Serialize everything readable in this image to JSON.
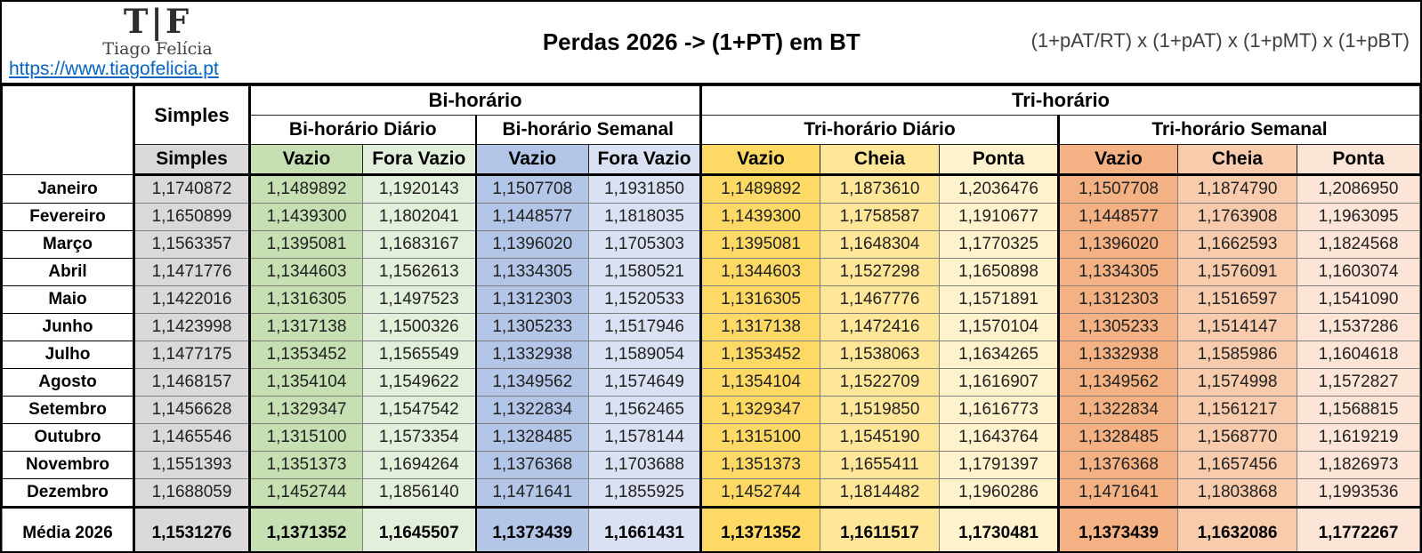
{
  "header": {
    "logo_tf": "T|F",
    "logo_name": "Tiago Felícia",
    "link": "https://www.tiagofelicia.pt",
    "title": "Perdas 2026 -> (1+PT) em BT",
    "formula": "(1+pAT/RT) x (1+pAT) x (1+pMT) x (1+pBT)"
  },
  "table_labels": {
    "group_bi": "Bi-horário",
    "group_tri": "Tri-horário",
    "simples_merged": "Simples",
    "sub_bi_diario": "Bi-horário Diário",
    "sub_bi_semanal": "Bi-horário Semanal",
    "sub_tri_diario": "Tri-horário Diário",
    "sub_tri_semanal": "Tri-horário Semanal",
    "col_headers": [
      "Simples",
      "Vazio",
      "Fora Vazio",
      "Vazio",
      "Fora Vazio",
      "Vazio",
      "Cheia",
      "Ponta",
      "Vazio",
      "Cheia",
      "Ponta"
    ]
  },
  "colors": {
    "simples": "#d9d9d9",
    "bi_diario_vazio": "#c6e0b4",
    "bi_diario_fora_vazio": "#e2efda",
    "bi_semanal_vazio": "#b4c6e7",
    "bi_semanal_fora_vazio": "#d9e1f2",
    "tri_diario_vazio": "#ffd966",
    "tri_diario_cheia": "#ffe699",
    "tri_diario_ponta": "#fff2cc",
    "tri_semanal_vazio": "#f4b183",
    "tri_semanal_cheia": "#f8cbad",
    "tri_semanal_ponta": "#fce4d6",
    "link_blue": "#0563c1"
  },
  "chart_data": {
    "type": "table",
    "title": "Perdas 2026 -> (1+PT) em BT",
    "formula": "(1+pAT/RT) x (1+pAT) x (1+pMT) x (1+pBT)",
    "columns": [
      "Simples",
      "Bi-horário Diário Vazio",
      "Bi-horário Diário Fora Vazio",
      "Bi-horário Semanal Vazio",
      "Bi-horário Semanal Fora Vazio",
      "Tri-horário Diário Vazio",
      "Tri-horário Diário Cheia",
      "Tri-horário Diário Ponta",
      "Tri-horário Semanal Vazio",
      "Tri-horário Semanal Cheia",
      "Tri-horário Semanal Ponta"
    ],
    "rows": [
      {
        "month": "Janeiro",
        "values": [
          "1,1740872",
          "1,1489892",
          "1,1920143",
          "1,1507708",
          "1,1931850",
          "1,1489892",
          "1,1873610",
          "1,2036476",
          "1,1507708",
          "1,1874790",
          "1,2086950"
        ]
      },
      {
        "month": "Fevereiro",
        "values": [
          "1,1650899",
          "1,1439300",
          "1,1802041",
          "1,1448577",
          "1,1818035",
          "1,1439300",
          "1,1758587",
          "1,1910677",
          "1,1448577",
          "1,1763908",
          "1,1963095"
        ]
      },
      {
        "month": "Março",
        "values": [
          "1,1563357",
          "1,1395081",
          "1,1683167",
          "1,1396020",
          "1,1705303",
          "1,1395081",
          "1,1648304",
          "1,1770325",
          "1,1396020",
          "1,1662593",
          "1,1824568"
        ]
      },
      {
        "month": "Abril",
        "values": [
          "1,1471776",
          "1,1344603",
          "1,1562613",
          "1,1334305",
          "1,1580521",
          "1,1344603",
          "1,1527298",
          "1,1650898",
          "1,1334305",
          "1,1576091",
          "1,1603074"
        ]
      },
      {
        "month": "Maio",
        "values": [
          "1,1422016",
          "1,1316305",
          "1,1497523",
          "1,1312303",
          "1,1520533",
          "1,1316305",
          "1,1467776",
          "1,1571891",
          "1,1312303",
          "1,1516597",
          "1,1541090"
        ]
      },
      {
        "month": "Junho",
        "values": [
          "1,1423998",
          "1,1317138",
          "1,1500326",
          "1,1305233",
          "1,1517946",
          "1,1317138",
          "1,1472416",
          "1,1570104",
          "1,1305233",
          "1,1514147",
          "1,1537286"
        ]
      },
      {
        "month": "Julho",
        "values": [
          "1,1477175",
          "1,1353452",
          "1,1565549",
          "1,1332938",
          "1,1589054",
          "1,1353452",
          "1,1538063",
          "1,1634265",
          "1,1332938",
          "1,1585986",
          "1,1604618"
        ]
      },
      {
        "month": "Agosto",
        "values": [
          "1,1468157",
          "1,1354104",
          "1,1549622",
          "1,1349562",
          "1,1574649",
          "1,1354104",
          "1,1522709",
          "1,1616907",
          "1,1349562",
          "1,1574998",
          "1,1572827"
        ]
      },
      {
        "month": "Setembro",
        "values": [
          "1,1456628",
          "1,1329347",
          "1,1547542",
          "1,1322834",
          "1,1562465",
          "1,1329347",
          "1,1519850",
          "1,1616773",
          "1,1322834",
          "1,1561217",
          "1,1568815"
        ]
      },
      {
        "month": "Outubro",
        "values": [
          "1,1465546",
          "1,1315100",
          "1,1573354",
          "1,1328485",
          "1,1578144",
          "1,1315100",
          "1,1545190",
          "1,1643764",
          "1,1328485",
          "1,1568770",
          "1,1619219"
        ]
      },
      {
        "month": "Novembro",
        "values": [
          "1,1551393",
          "1,1351373",
          "1,1694264",
          "1,1376368",
          "1,1703688",
          "1,1351373",
          "1,1655411",
          "1,1791397",
          "1,1376368",
          "1,1657456",
          "1,1826973"
        ]
      },
      {
        "month": "Dezembro",
        "values": [
          "1,1688059",
          "1,1452744",
          "1,1856140",
          "1,1471641",
          "1,1855925",
          "1,1452744",
          "1,1814482",
          "1,1960286",
          "1,1471641",
          "1,1803868",
          "1,1993536"
        ]
      }
    ],
    "footer": {
      "label": "Média 2026",
      "values": [
        "1,1531276",
        "1,1371352",
        "1,1645507",
        "1,1373439",
        "1,1661431",
        "1,1371352",
        "1,1611517",
        "1,1730481",
        "1,1373439",
        "1,1632086",
        "1,1772267"
      ]
    }
  }
}
